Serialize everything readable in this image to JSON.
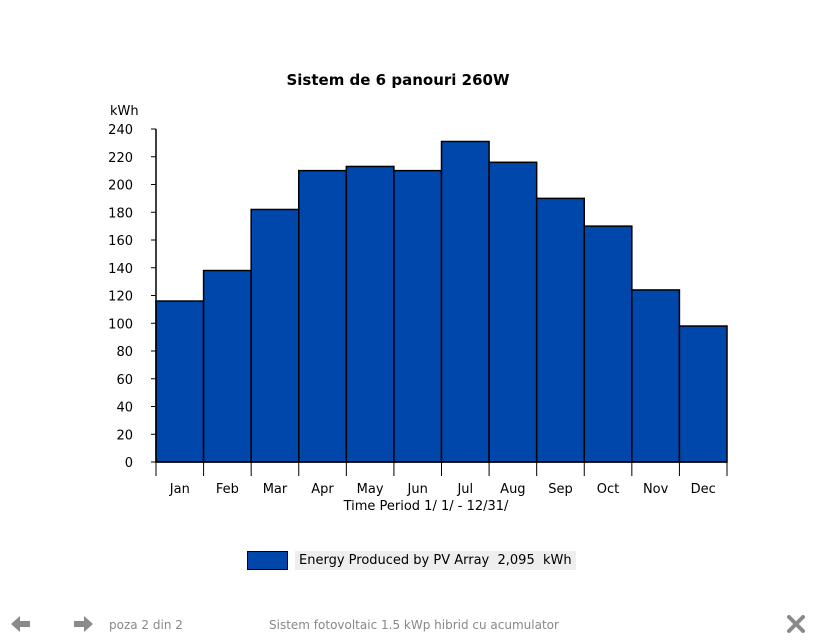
{
  "chart_data": {
    "type": "bar",
    "title": "Sistem de 6 panouri 260W",
    "ylabel": "kWh",
    "xlabel": "Time Period 1/ 1/ - 12/31/",
    "categories": [
      "Jan",
      "Feb",
      "Mar",
      "Apr",
      "May",
      "Jun",
      "Jul",
      "Aug",
      "Sep",
      "Oct",
      "Nov",
      "Dec"
    ],
    "values": [
      116,
      138,
      182,
      210,
      213,
      210,
      231,
      216,
      190,
      170,
      124,
      98
    ],
    "ylim": [
      0,
      240
    ],
    "yticks": [
      0,
      20,
      40,
      60,
      80,
      100,
      120,
      140,
      160,
      180,
      200,
      220,
      240
    ],
    "bar_color": "#0047ab",
    "grid": false,
    "legend": {
      "label": "Energy Produced by PV Array  2,095  kWh",
      "placement": "bottom-center"
    }
  },
  "footer": {
    "counter": "poza 2 din 2",
    "caption": "Sistem fotovoltaic 1.5 kWp hibrid cu acumulator",
    "prev_icon": "arrow-left-icon",
    "next_icon": "arrow-right-icon",
    "close_icon": "close-icon"
  }
}
